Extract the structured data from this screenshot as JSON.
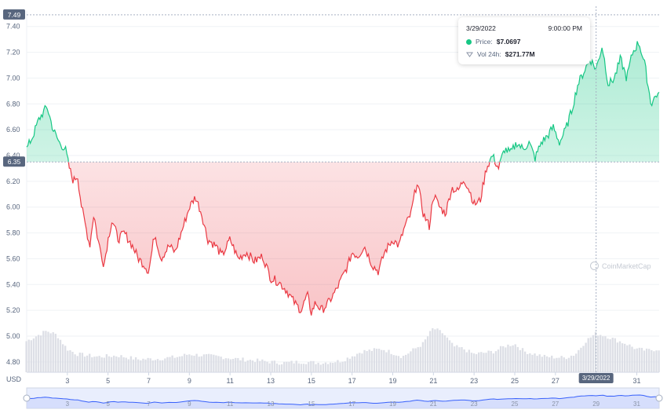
{
  "chart_data": {
    "type": "area",
    "currency_label": "USD",
    "y_ticks": [
      "4.80",
      "5.00",
      "5.20",
      "5.40",
      "5.60",
      "5.80",
      "6.00",
      "6.20",
      "6.40",
      "6.60",
      "6.80",
      "7.00",
      "7.20",
      "7.40"
    ],
    "ylim": [
      4.72,
      7.52
    ],
    "x_ticks": [
      "3",
      "5",
      "7",
      "9",
      "11",
      "13",
      "15",
      "17",
      "19",
      "21",
      "23",
      "25",
      "27",
      "29",
      "31"
    ],
    "x_tick_days": [
      3,
      5,
      7,
      9,
      11,
      13,
      15,
      17,
      19,
      21,
      23,
      25,
      27,
      29,
      31
    ],
    "xlim": [
      1,
      32.1
    ],
    "reference_price": 6.35,
    "reference_label": "6.35",
    "high_label": "7.49",
    "high_value": 7.49,
    "crosshair_label": "3/29/2022",
    "crosshair_day": 29.0,
    "colors": {
      "up": "#16c784",
      "down": "#ea3943",
      "volume": "#d9dce3",
      "nav": "#3861fb"
    },
    "price_keypoints": [
      [
        1.0,
        6.45
      ],
      [
        1.3,
        6.55
      ],
      [
        1.6,
        6.68
      ],
      [
        2.0,
        6.78
      ],
      [
        2.3,
        6.6
      ],
      [
        2.6,
        6.5
      ],
      [
        2.9,
        6.45
      ],
      [
        3.1,
        6.3
      ],
      [
        3.3,
        6.2
      ],
      [
        3.5,
        6.25
      ],
      [
        3.7,
        6.0
      ],
      [
        3.9,
        5.85
      ],
      [
        4.1,
        5.7
      ],
      [
        4.3,
        5.95
      ],
      [
        4.5,
        5.75
      ],
      [
        4.8,
        5.55
      ],
      [
        5.0,
        5.75
      ],
      [
        5.2,
        5.9
      ],
      [
        5.5,
        5.75
      ],
      [
        5.8,
        5.8
      ],
      [
        6.2,
        5.7
      ],
      [
        6.5,
        5.6
      ],
      [
        6.8,
        5.55
      ],
      [
        7.0,
        5.5
      ],
      [
        7.3,
        5.8
      ],
      [
        7.6,
        5.6
      ],
      [
        8.0,
        5.7
      ],
      [
        8.3,
        5.65
      ],
      [
        8.6,
        5.8
      ],
      [
        9.0,
        6.0
      ],
      [
        9.3,
        6.08
      ],
      [
        9.6,
        5.95
      ],
      [
        9.9,
        5.75
      ],
      [
        10.3,
        5.7
      ],
      [
        10.6,
        5.62
      ],
      [
        11.0,
        5.75
      ],
      [
        11.4,
        5.6
      ],
      [
        11.8,
        5.65
      ],
      [
        12.2,
        5.58
      ],
      [
        12.6,
        5.62
      ],
      [
        13.0,
        5.45
      ],
      [
        13.4,
        5.42
      ],
      [
        13.8,
        5.35
      ],
      [
        14.2,
        5.25
      ],
      [
        14.5,
        5.2
      ],
      [
        14.8,
        5.32
      ],
      [
        15.0,
        5.18
      ],
      [
        15.2,
        5.26
      ],
      [
        15.5,
        5.2
      ],
      [
        15.8,
        5.25
      ],
      [
        16.2,
        5.35
      ],
      [
        16.5,
        5.45
      ],
      [
        16.8,
        5.55
      ],
      [
        17.0,
        5.65
      ],
      [
        17.3,
        5.62
      ],
      [
        17.6,
        5.7
      ],
      [
        18.0,
        5.55
      ],
      [
        18.3,
        5.5
      ],
      [
        18.6,
        5.65
      ],
      [
        19.0,
        5.75
      ],
      [
        19.3,
        5.7
      ],
      [
        19.6,
        5.85
      ],
      [
        19.9,
        5.95
      ],
      [
        20.2,
        6.2
      ],
      [
        20.5,
        5.95
      ],
      [
        20.8,
        5.85
      ],
      [
        21.0,
        6.1
      ],
      [
        21.3,
        6.0
      ],
      [
        21.6,
        5.95
      ],
      [
        21.9,
        6.15
      ],
      [
        22.2,
        6.12
      ],
      [
        22.5,
        6.22
      ],
      [
        22.8,
        6.12
      ],
      [
        23.0,
        6.02
      ],
      [
        23.3,
        6.05
      ],
      [
        23.6,
        6.3
      ],
      [
        23.9,
        6.4
      ],
      [
        24.2,
        6.3
      ],
      [
        24.5,
        6.45
      ],
      [
        24.8,
        6.42
      ],
      [
        25.1,
        6.5
      ],
      [
        25.4,
        6.45
      ],
      [
        25.7,
        6.5
      ],
      [
        26.0,
        6.38
      ],
      [
        26.3,
        6.5
      ],
      [
        26.6,
        6.55
      ],
      [
        26.9,
        6.62
      ],
      [
        27.2,
        6.5
      ],
      [
        27.5,
        6.6
      ],
      [
        27.8,
        6.75
      ],
      [
        28.1,
        6.95
      ],
      [
        28.4,
        7.05
      ],
      [
        28.7,
        7.15
      ],
      [
        29.0,
        7.07
      ],
      [
        29.3,
        7.25
      ],
      [
        29.6,
        6.95
      ],
      [
        29.9,
        7.0
      ],
      [
        30.2,
        7.15
      ],
      [
        30.5,
        7.0
      ],
      [
        30.8,
        7.2
      ],
      [
        31.1,
        7.28
      ],
      [
        31.4,
        7.1
      ],
      [
        31.7,
        6.8
      ],
      [
        32.0,
        6.88
      ],
      [
        32.1,
        6.86
      ]
    ],
    "volume_keypoints": [
      [
        1.0,
        0.6
      ],
      [
        2.0,
        0.8
      ],
      [
        2.5,
        0.72
      ],
      [
        3.0,
        0.45
      ],
      [
        3.5,
        0.35
      ],
      [
        4.5,
        0.3
      ],
      [
        5.5,
        0.32
      ],
      [
        6.5,
        0.25
      ],
      [
        7.5,
        0.26
      ],
      [
        8.5,
        0.3
      ],
      [
        9.0,
        0.35
      ],
      [
        9.5,
        0.33
      ],
      [
        10.5,
        0.3
      ],
      [
        11.5,
        0.25
      ],
      [
        12.5,
        0.22
      ],
      [
        13.5,
        0.18
      ],
      [
        14.5,
        0.2
      ],
      [
        15.5,
        0.18
      ],
      [
        16.5,
        0.22
      ],
      [
        17.5,
        0.4
      ],
      [
        18.5,
        0.45
      ],
      [
        19.5,
        0.3
      ],
      [
        20.5,
        0.55
      ],
      [
        21.0,
        0.85
      ],
      [
        21.5,
        0.75
      ],
      [
        22.0,
        0.5
      ],
      [
        22.5,
        0.45
      ],
      [
        23.0,
        0.35
      ],
      [
        24.0,
        0.4
      ],
      [
        24.5,
        0.5
      ],
      [
        25.0,
        0.55
      ],
      [
        25.5,
        0.4
      ],
      [
        26.5,
        0.3
      ],
      [
        27.5,
        0.28
      ],
      [
        28.0,
        0.35
      ],
      [
        28.5,
        0.6
      ],
      [
        29.0,
        0.75
      ],
      [
        29.5,
        0.7
      ],
      [
        30.0,
        0.62
      ],
      [
        30.5,
        0.55
      ],
      [
        31.0,
        0.45
      ],
      [
        31.5,
        0.42
      ],
      [
        32.1,
        0.45
      ]
    ]
  },
  "tooltip": {
    "date": "3/29/2022",
    "time": "9:00:00 PM",
    "price_label": "Price:",
    "price_value": "$7.0697",
    "volume_label": "Vol 24h:",
    "volume_value": "$271.77M"
  },
  "watermark": "CoinMarketCap"
}
